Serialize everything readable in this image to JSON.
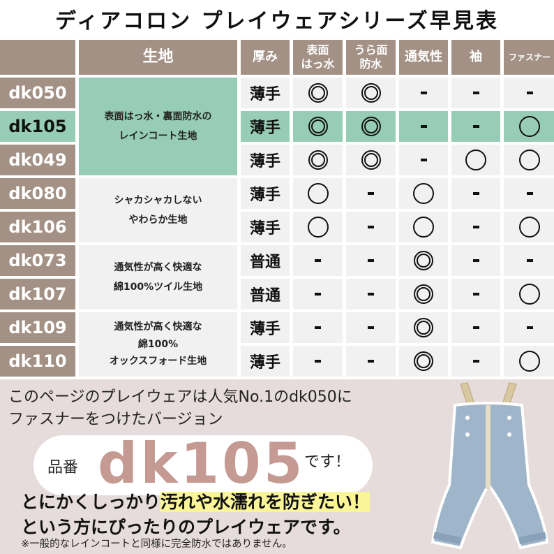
{
  "title": "ディアコロン プレイウェアシリーズ早見表",
  "headers": [
    "",
    "生地",
    "厚み",
    "表面\nはっ水",
    "うら面\n防水",
    "通気性",
    "袖",
    "ファスナー"
  ],
  "fabric_groups": [
    {
      "text": "表面はっ水・裏面防水の\nレインコート生地",
      "rows": 3
    },
    {
      "text": "シャカシャカしない\nやわらか生地",
      "rows": 2
    },
    {
      "text": "通気性が高く快適な\n綿100%ツイル生地",
      "rows": 2
    },
    {
      "text": "通気性が高く快適な\n綿100%\nオックスフォード生地",
      "rows": 2
    }
  ],
  "rows": [
    {
      "model": "dk050",
      "thickness": "薄手",
      "marks": [
        "◎",
        "◎",
        "-",
        "-",
        "-"
      ]
    },
    {
      "model": "dk105",
      "thickness": "薄手",
      "marks": [
        "◎",
        "◎",
        "-",
        "-",
        "〇"
      ],
      "highlight": true
    },
    {
      "model": "dk049",
      "thickness": "薄手",
      "marks": [
        "◎",
        "◎",
        "-",
        "〇",
        "〇"
      ]
    },
    {
      "model": "dk080",
      "thickness": "薄手",
      "marks": [
        "〇",
        "-",
        "〇",
        "-",
        "-"
      ]
    },
    {
      "model": "dk106",
      "thickness": "薄手",
      "marks": [
        "〇",
        "-",
        "〇",
        "-",
        "〇"
      ]
    },
    {
      "model": "dk073",
      "thickness": "普通",
      "marks": [
        "-",
        "-",
        "◎",
        "-",
        "-"
      ]
    },
    {
      "model": "dk107",
      "thickness": "普通",
      "marks": [
        "-",
        "-",
        "◎",
        "-",
        "〇"
      ]
    },
    {
      "model": "dk109",
      "thickness": "薄手",
      "marks": [
        "-",
        "-",
        "◎",
        "-",
        "-"
      ]
    },
    {
      "model": "dk110",
      "thickness": "薄手",
      "marks": [
        "-",
        "-",
        "◎",
        "-",
        "〇"
      ]
    }
  ],
  "promo": {
    "line1": "このページのプレイウェアは人気No.1のdk050に",
    "line2": "ファスナーをつけたバージョン",
    "label": "品番",
    "code": "dk105",
    "suffix": "です！",
    "line3a": "とにかくしっかり",
    "line3b": "汚れや水濡れを防ぎたい！",
    "line4": "という方にぴったりのプレイウェアです。",
    "note": "※一般的なレインコートと同様に完全防水ではありません。"
  },
  "colors": {
    "header": "#a39185",
    "highlight": "#97cdb6",
    "cell": "#f1f1f1",
    "promo_bg": "#e6dcdb",
    "code": "#c49a92",
    "marker": "#fbf59a"
  }
}
